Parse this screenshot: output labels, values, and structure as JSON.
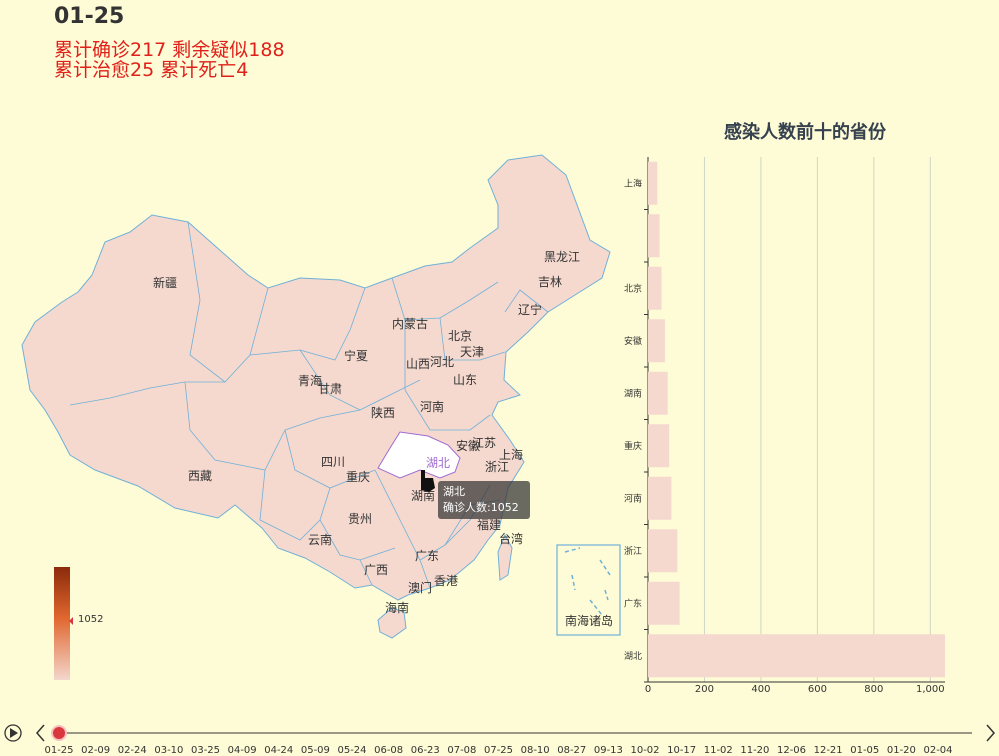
{
  "header": {
    "date": "01-25",
    "stat_line1": "累计确诊217 剩余疑似188",
    "stat_line2": "累计治愈25 累计死亡4"
  },
  "map": {
    "province_labels": [
      "新疆",
      "西藏",
      "青海",
      "甘肃",
      "宁夏",
      "内蒙古",
      "黑龙江",
      "吉林",
      "辽宁",
      "北京",
      "天津",
      "河北",
      "山西",
      "山东",
      "陕西",
      "河南",
      "四川",
      "重庆",
      "湖北",
      "安徽",
      "江苏",
      "上海",
      "浙江",
      "湖南",
      "贵州",
      "云南",
      "广西",
      "广东",
      "福建",
      "台湾",
      "香港",
      "澳门",
      "海南"
    ],
    "south_sea_label": "南海诸岛",
    "highlighted": "湖北",
    "tooltip": {
      "province": "湖北",
      "line": "确诊人数:1052"
    },
    "visual_map_value": "1052",
    "colors": {
      "fill": "#f5d9cf",
      "border": "#6fb0d8",
      "highlight": "#ffffff",
      "visualmap_top": "#8b2a0a",
      "visualmap_bottom": "#f4d6cc"
    }
  },
  "chart_data": {
    "type": "bar",
    "orientation": "horizontal",
    "title": "感染人数前十的省份",
    "categories": [
      "上海",
      "",
      "北京",
      "安徽",
      "湖南",
      "重庆",
      "河南",
      "浙江",
      "广东",
      "湖北"
    ],
    "values": [
      33,
      41,
      48,
      60,
      70,
      75,
      83,
      104,
      112,
      1052
    ],
    "xlim": [
      0,
      1052
    ],
    "xticks": [
      "0",
      "200",
      "400",
      "600",
      "800",
      "1,000"
    ],
    "bar_color": "#f5d9cf",
    "grid": true
  },
  "timeline": {
    "play_icon": "play-icon",
    "labels": [
      "01-25",
      "02-09",
      "02-24",
      "03-10",
      "03-25",
      "04-09",
      "04-24",
      "05-09",
      "05-24",
      "06-08",
      "06-23",
      "07-08",
      "07-25",
      "08-10",
      "08-27",
      "09-13",
      "10-02",
      "10-17",
      "11-02",
      "11-20",
      "12-06",
      "12-21",
      "01-05",
      "01-20",
      "02-04"
    ],
    "current_index": 0,
    "dot_color": "#d9363e"
  }
}
